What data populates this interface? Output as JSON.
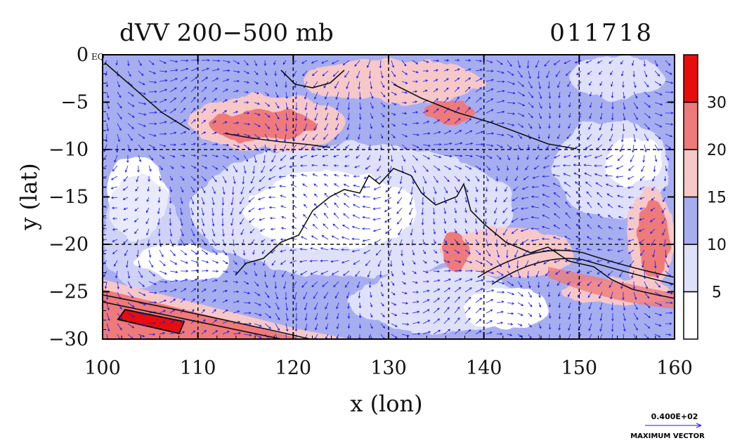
{
  "figure": {
    "title": "dVV 200−500 mb",
    "date_code": "011718",
    "xlabel": "x (lon)",
    "ylabel": "y (lat)",
    "corner_label": "EQ",
    "max_vector_value": "0.400E+02",
    "max_vector_label": "MAXIMUM VECTOR"
  },
  "chart_data": {
    "type": "heatmap",
    "title": "dVV 200−500 mb",
    "date_code": "011718",
    "xlabel": "x (lon)",
    "ylabel": "y (lat)",
    "xlim": [
      100,
      160
    ],
    "ylim": [
      -30,
      0
    ],
    "xticks": [
      100,
      110,
      120,
      130,
      140,
      150,
      160
    ],
    "xtick_labels": [
      "100",
      "110",
      "120",
      "130",
      "140",
      "150",
      "160"
    ],
    "yticks": [
      0,
      -5,
      -10,
      -15,
      -20,
      -25,
      -30
    ],
    "ytick_labels": [
      "0",
      "−5",
      "−10",
      "−15",
      "−20",
      "−25",
      "−30"
    ],
    "grid_lon": [
      110,
      120,
      130,
      140,
      150
    ],
    "grid_lat": [
      -10,
      -20
    ],
    "colorbar": {
      "levels": [
        0,
        5,
        10,
        15,
        20,
        30,
        40
      ],
      "tick_labels": [
        "5",
        "10",
        "15",
        "20",
        "30"
      ],
      "colors": [
        "#ffffff",
        "#dfe1fa",
        "#a7aef0",
        "#f7c8c8",
        "#ef7a7a",
        "#e80d0d"
      ]
    },
    "field_regions": [
      {
        "name": "strong-jet-core",
        "level": ">30",
        "lon": [
          101.5,
          108.5
        ],
        "lat": [
          -28.5,
          -27.2
        ]
      },
      {
        "name": "jet-band-south",
        "level": "20-30",
        "lon": [
          100,
          113
        ],
        "lat": [
          -30,
          -26
        ]
      },
      {
        "name": "north-maximum-west",
        "level": "20-30",
        "lon": [
          113,
          126
        ],
        "lat": [
          -10,
          -4
        ]
      },
      {
        "name": "north-maximum-east",
        "level": "15-20",
        "lon": [
          128,
          145
        ],
        "lat": [
          -8,
          -1
        ]
      },
      {
        "name": "east-maximum",
        "level": "20-30",
        "lon": [
          155,
          160
        ],
        "lat": [
          -25,
          -15
        ]
      },
      {
        "name": "subtropical-band",
        "level": "15-20",
        "lon": [
          137,
          149
        ],
        "lat": [
          -23,
          -17
        ]
      },
      {
        "name": "south-east-jet",
        "level": "15-20",
        "lon": [
          149,
          160
        ],
        "lat": [
          -27,
          -24
        ]
      }
    ],
    "wind_vectors": {
      "reference_magnitude": 40,
      "reference_label": "0.400E+02 MAXIMUM VECTOR",
      "description": "wind vector field overlay"
    },
    "overlay": "coastlines and contour lines"
  }
}
